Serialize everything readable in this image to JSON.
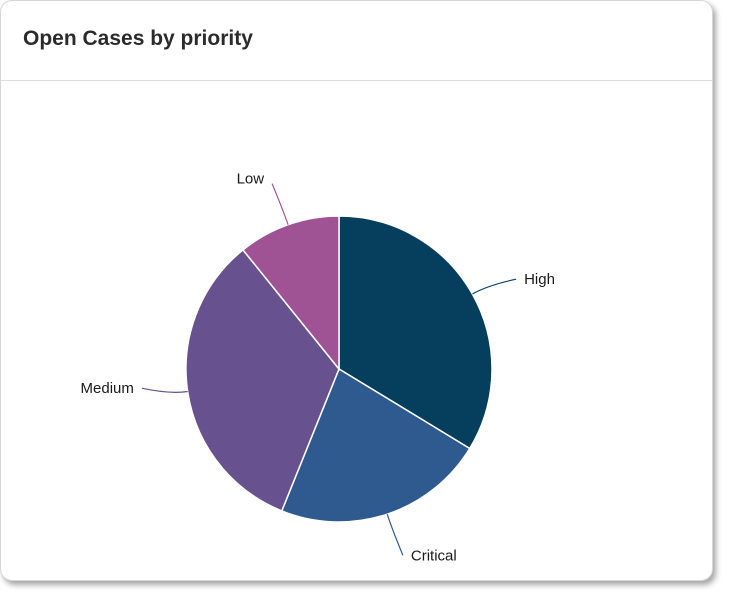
{
  "card": {
    "title": "Open Cases by priority"
  },
  "chart_data": {
    "type": "pie",
    "title": "Open Cases by priority",
    "slices": [
      {
        "label": "High",
        "value": 33.7,
        "color": "#063e5d"
      },
      {
        "label": "Critical",
        "value": 22.4,
        "color": "#2f5a8f"
      },
      {
        "label": "Medium",
        "value": 33.1,
        "color": "#67528f"
      },
      {
        "label": "Low",
        "value": 10.8,
        "color": "#a05394"
      }
    ],
    "start_angle_deg": 0,
    "direction": "clockwise",
    "labels": "outside-with-leader-lines",
    "legend": "none"
  }
}
